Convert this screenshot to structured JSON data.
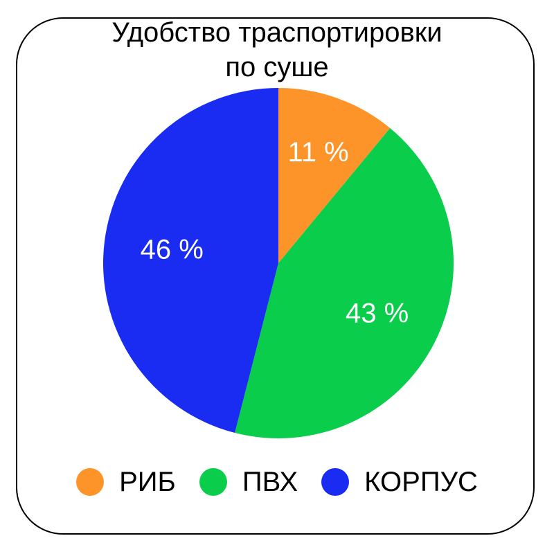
{
  "chart_data": {
    "type": "pie",
    "title_lines": [
      "Удобство траспортировки",
      "по суше"
    ],
    "slices": [
      {
        "label": "РИБ",
        "value": 11,
        "value_label": "11 %",
        "color": "#FD9429"
      },
      {
        "label": "ПВХ",
        "value": 43,
        "value_label": "43 %",
        "color": "#0ACD4C"
      },
      {
        "label": "КОРПУС",
        "value": 46,
        "value_label": "46 %",
        "color": "#1A2BF2"
      }
    ],
    "legend_position": "bottom",
    "start_angle": "12 o'clock",
    "direction": "clockwise"
  }
}
